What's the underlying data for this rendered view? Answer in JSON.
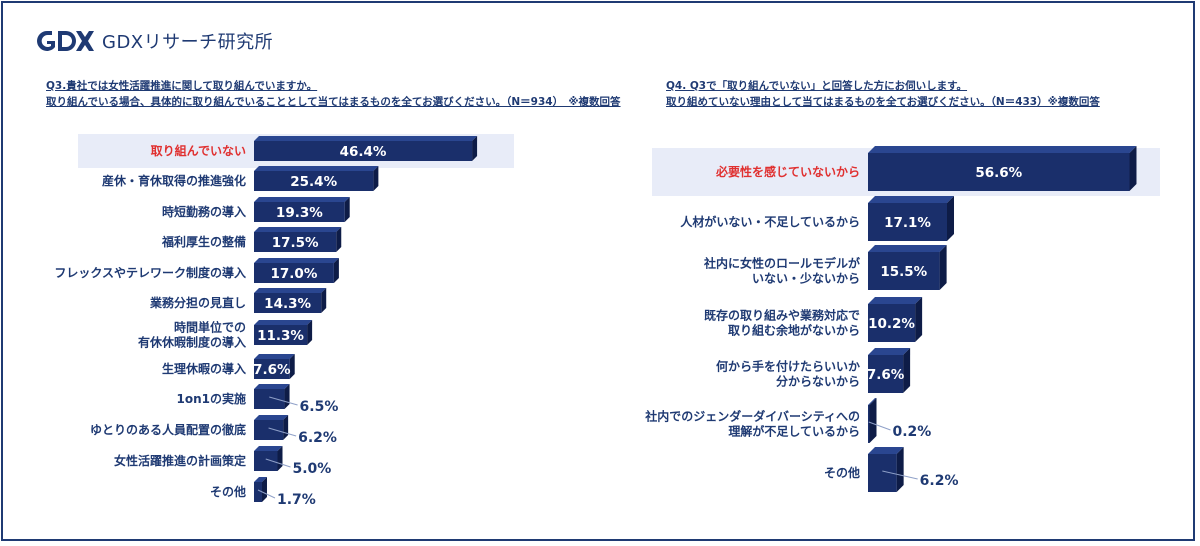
{
  "logo": {
    "name": "GDXリサーチ研究所"
  },
  "colors": {
    "bar_front": "#1a2f6b",
    "bar_top": "#2a4690",
    "bar_side": "#0e1c47",
    "highlight_bg": "#e8ecf8",
    "highlight_text": "#e03030",
    "text": "#1f3a73"
  },
  "left_title": {
    "line1": "Q3.貴社では女性活躍推進に関して取り組んでいますか。",
    "line2": "取り組んでいる場合、具体的に取り組んでいることとして当てはまるものを全てお選びください。（N＝934）　※複数回答"
  },
  "right_title": {
    "line1": "Q4. Q3で「取り組んでいない」と回答した方にお伺いします。",
    "line2": "取り組めていない理由として当てはまるものを全てお選びください。（N＝433）※複数回答"
  },
  "chart_data": [
    {
      "type": "bar",
      "orientation": "horizontal",
      "categories": [
        "取り組んでいない",
        "産休・育休取得の推進強化",
        "時短勤務の導入",
        "福利厚生の整備",
        "フレックスやテレワーク制度の導入",
        "業務分担の見直し",
        "時間単位での\n有休休暇制度の導入",
        "生理休暇の導入",
        "1on1の実施",
        "ゆとりのある人員配置の徹底",
        "女性活躍推進の計画策定",
        "その他"
      ],
      "values": [
        46.4,
        25.4,
        19.3,
        17.5,
        17.0,
        14.3,
        11.3,
        7.6,
        6.5,
        6.2,
        5.0,
        1.7
      ],
      "labels": [
        "46.4%",
        "25.4%",
        "19.3%",
        "17.5%",
        "17.0%",
        "14.3%",
        "11.3%",
        "7.6%",
        "6.5%",
        "6.2%",
        "5.0%",
        "1.7%"
      ],
      "highlight_index": 0
    },
    {
      "type": "bar",
      "orientation": "horizontal",
      "categories": [
        "必要性を感じていないから",
        "人材がいない・不足しているから",
        "社内に女性のロールモデルが\nいない・少ないから",
        "既存の取り組みや業務対応で\n取り組む余地がないから",
        "何から手を付けたらいいか\n分からないから",
        "社内でのジェンダーダイバーシティへの\n理解が不足しているから",
        "その他"
      ],
      "values": [
        56.6,
        17.1,
        15.5,
        10.2,
        7.6,
        0.2,
        6.2
      ],
      "labels": [
        "56.6%",
        "17.1%",
        "15.5%",
        "10.2%",
        "7.6%",
        "0.2%",
        "6.2%"
      ],
      "highlight_index": 0
    }
  ]
}
